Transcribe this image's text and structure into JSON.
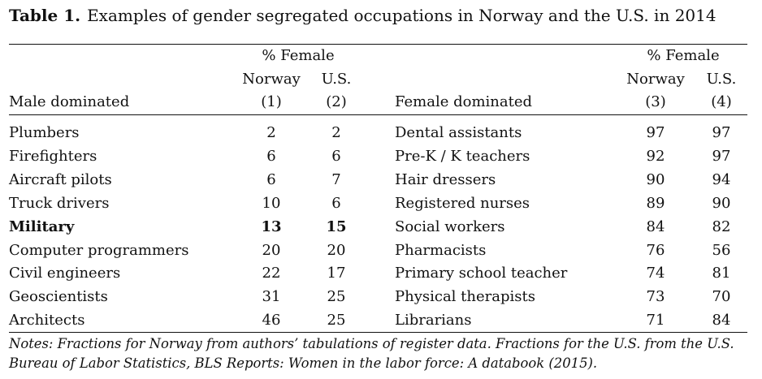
{
  "caption": {
    "label": "Table 1.",
    "text": "Examples of gender segregated occupations in Norway and the U.S. in 2014"
  },
  "header": {
    "pct_female": "% Female",
    "norway": "Norway",
    "us": "U.S.",
    "male_title": "Male dominated",
    "female_title": "Female dominated",
    "col1": "(1)",
    "col2": "(2)",
    "col3": "(3)",
    "col4": "(4)"
  },
  "male_rows": [
    {
      "occupation": "Plumbers",
      "norway": "2",
      "us": "2"
    },
    {
      "occupation": "Firefighters",
      "norway": "6",
      "us": "6"
    },
    {
      "occupation": "Aircraft pilots",
      "norway": "6",
      "us": "7"
    },
    {
      "occupation": "Truck drivers",
      "norway": "10",
      "us": "6"
    },
    {
      "occupation": "Military",
      "norway": "13",
      "us": "15"
    },
    {
      "occupation": "Computer programmers",
      "norway": "20",
      "us": "20"
    },
    {
      "occupation": "Civil engineers",
      "norway": "22",
      "us": "17"
    },
    {
      "occupation": "Geoscientists",
      "norway": "31",
      "us": "25"
    },
    {
      "occupation": "Architects",
      "norway": "46",
      "us": "25"
    }
  ],
  "female_rows": [
    {
      "occupation": "Dental assistants",
      "norway": "97",
      "us": "97"
    },
    {
      "occupation": "Pre-K / K teachers",
      "norway": "92",
      "us": "97"
    },
    {
      "occupation": "Hair dressers",
      "norway": "90",
      "us": "94"
    },
    {
      "occupation": "Registered nurses",
      "norway": "89",
      "us": "90"
    },
    {
      "occupation": "Social workers",
      "norway": "84",
      "us": "82"
    },
    {
      "occupation": "Pharmacists",
      "norway": "76",
      "us": "56"
    },
    {
      "occupation": "Primary school teacher",
      "norway": "74",
      "us": "81"
    },
    {
      "occupation": "Physical therapists",
      "norway": "73",
      "us": "70"
    },
    {
      "occupation": "Librarians",
      "norway": "71",
      "us": "84"
    }
  ],
  "notes": {
    "line1": "Notes: Fractions for Norway from authors’ tabulations of register data. Fractions for the U.S. from the U.S.",
    "line2": "Bureau of Labor Statistics, BLS Reports: Women in the labor force: A databook (2015)."
  }
}
